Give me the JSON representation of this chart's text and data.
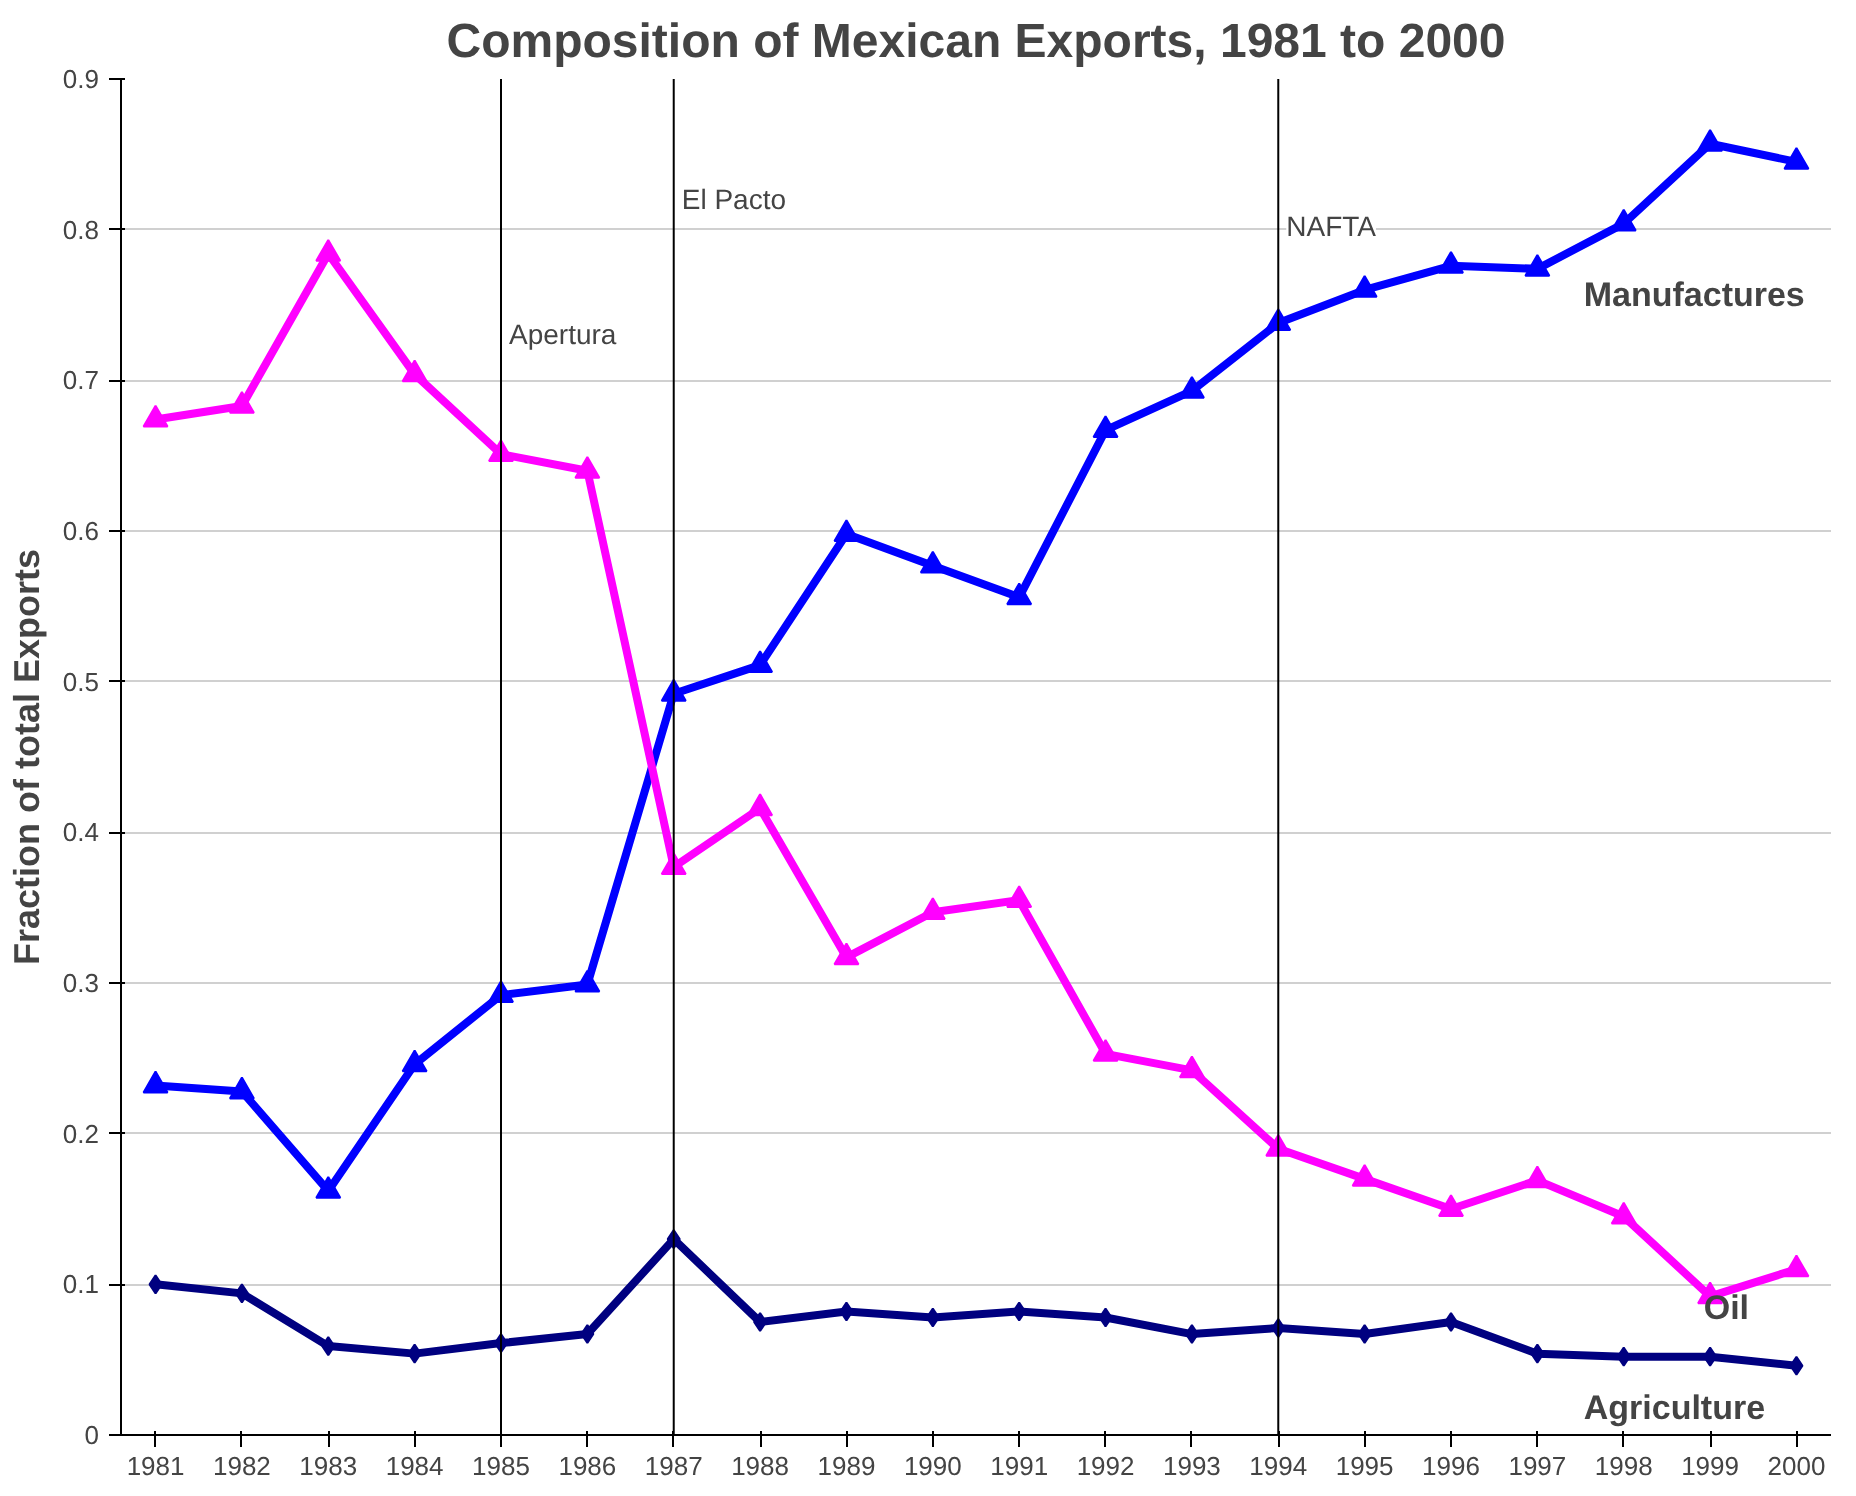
{
  "chart_data": {
    "type": "line",
    "title": "Composition of Mexican Exports, 1981 to 2000",
    "ylabel": "Fraction of total Exports",
    "x": [
      1981,
      1982,
      1983,
      1984,
      1985,
      1986,
      1987,
      1988,
      1989,
      1990,
      1991,
      1992,
      1993,
      1994,
      1995,
      1996,
      1997,
      1998,
      1999,
      2000
    ],
    "series": [
      {
        "name": "Manufactures",
        "color": "#0000ff",
        "marker": "triangle",
        "values": [
          0.232,
          0.228,
          0.162,
          0.246,
          0.292,
          0.299,
          0.492,
          0.511,
          0.598,
          0.577,
          0.556,
          0.667,
          0.693,
          0.738,
          0.76,
          0.776,
          0.774,
          0.804,
          0.857,
          0.845
        ]
      },
      {
        "name": "Oil",
        "color": "#ff00ff",
        "marker": "triangle",
        "values": [
          0.674,
          0.683,
          0.784,
          0.704,
          0.651,
          0.64,
          0.377,
          0.416,
          0.317,
          0.347,
          0.355,
          0.253,
          0.242,
          0.19,
          0.17,
          0.15,
          0.169,
          0.145,
          0.092,
          0.11
        ]
      },
      {
        "name": "Agriculture",
        "color": "#000080",
        "marker": "diamond",
        "values": [
          0.1,
          0.094,
          0.059,
          0.054,
          0.061,
          0.067,
          0.13,
          0.075,
          0.082,
          0.078,
          0.082,
          0.078,
          0.067,
          0.071,
          0.067,
          0.075,
          0.054,
          0.052,
          0.052,
          0.046
        ]
      }
    ],
    "xlim": [
      1980.6,
      2000.4
    ],
    "xticks": [
      1981,
      1982,
      1983,
      1984,
      1985,
      1986,
      1987,
      1988,
      1989,
      1990,
      1991,
      1992,
      1993,
      1994,
      1995,
      1996,
      1997,
      1998,
      1999,
      2000
    ],
    "ylim": [
      0,
      0.9
    ],
    "yticks": [
      0,
      0.1,
      0.2,
      0.3,
      0.4,
      0.5,
      0.6,
      0.7,
      0.8,
      0.9
    ],
    "ref_lines": [
      {
        "axis": "x",
        "value": 1985,
        "label": "Apertura",
        "color": "#000000"
      },
      {
        "axis": "x",
        "value": 1987,
        "label": "El Pacto",
        "color": "#000000"
      },
      {
        "axis": "x",
        "value": 1994,
        "label": "NAFTA",
        "color": "#000000"
      }
    ],
    "grid": "y",
    "legend": false,
    "line_style": "solid"
  }
}
